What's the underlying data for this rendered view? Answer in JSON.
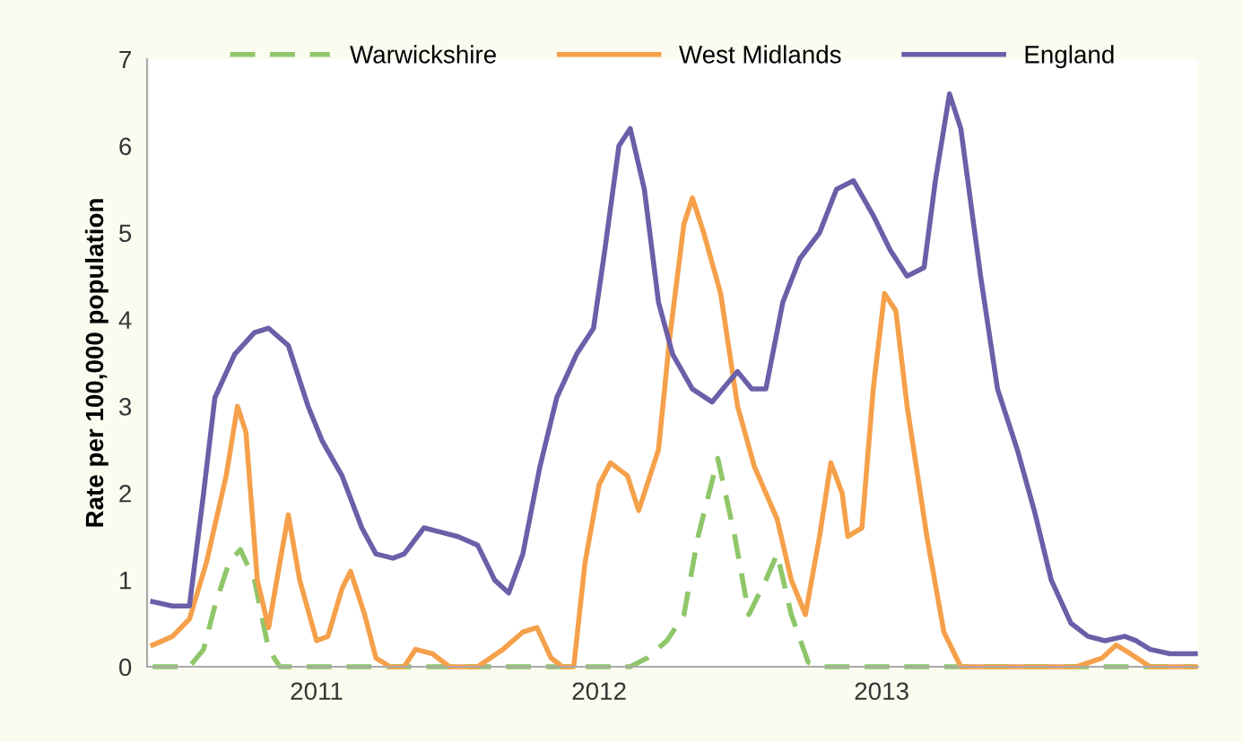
{
  "chart_data": {
    "type": "line",
    "ylabel": "Rate per 100,000 population",
    "xlim": [
      2010.4,
      2014.12
    ],
    "ylim": [
      0,
      7
    ],
    "yticks": [
      0,
      1,
      2,
      3,
      4,
      5,
      6,
      7
    ],
    "xticks": [
      2011,
      2012,
      2013
    ],
    "grid": false,
    "legend": "top",
    "marker": "none",
    "series": [
      {
        "name": "Warwickshire",
        "color": "#8fc66a",
        "line_style": "dashed",
        "x": [
          2010.42,
          2010.55,
          2010.6,
          2010.64,
          2010.69,
          2010.73,
          2010.78,
          2010.83,
          2010.87,
          2012.11,
          2012.17,
          2012.24,
          2012.3,
          2012.35,
          2012.42,
          2012.48,
          2012.53,
          2012.59,
          2012.63,
          2012.68,
          2012.74,
          2012.79,
          2014.11
        ],
        "values": [
          0,
          0,
          0.2,
          0.7,
          1.2,
          1.35,
          1.0,
          0.2,
          0,
          0,
          0.1,
          0.3,
          0.6,
          1.5,
          2.4,
          1.5,
          0.6,
          1.0,
          1.3,
          0.6,
          0.05,
          0,
          0
        ]
      },
      {
        "name": "West Midlands",
        "color": "#f5a04a",
        "line_style": "solid",
        "x": [
          2010.42,
          2010.49,
          2010.55,
          2010.61,
          2010.68,
          2010.72,
          2010.75,
          2010.79,
          2010.83,
          2010.87,
          2010.9,
          2010.94,
          2011.0,
          2011.04,
          2011.09,
          2011.12,
          2011.17,
          2011.21,
          2011.26,
          2011.31,
          2011.35,
          2011.41,
          2011.47,
          2011.57,
          2011.66,
          2011.73,
          2011.78,
          2011.83,
          2011.87,
          2011.91,
          2011.95,
          2012.0,
          2012.04,
          2012.1,
          2012.14,
          2012.21,
          2012.25,
          2012.3,
          2012.33,
          2012.37,
          2012.43,
          2012.49,
          2012.55,
          2012.63,
          2012.68,
          2012.73,
          2012.78,
          2012.82,
          2012.86,
          2012.88,
          2012.93,
          2012.97,
          2013.01,
          2013.05,
          2013.09,
          2013.16,
          2013.22,
          2013.28,
          2013.45,
          2013.69,
          2013.78,
          2013.83,
          2013.88,
          2013.95,
          2014.11
        ],
        "values": [
          0.25,
          0.35,
          0.55,
          1.2,
          2.2,
          3.0,
          2.7,
          1.0,
          0.45,
          1.2,
          1.75,
          1.0,
          0.3,
          0.35,
          0.9,
          1.1,
          0.6,
          0.1,
          0,
          0,
          0.2,
          0.15,
          0,
          0,
          0.2,
          0.4,
          0.45,
          0.1,
          0,
          0,
          1.2,
          2.1,
          2.35,
          2.2,
          1.8,
          2.5,
          3.8,
          5.1,
          5.4,
          5.0,
          4.3,
          3.0,
          2.3,
          1.7,
          1.0,
          0.6,
          1.5,
          2.35,
          2.0,
          1.5,
          1.6,
          3.2,
          4.3,
          4.1,
          3.0,
          1.5,
          0.4,
          0,
          0,
          0,
          0.1,
          0.25,
          0.15,
          0,
          0
        ]
      },
      {
        "name": "England",
        "color": "#6a5fa8",
        "line_style": "solid",
        "x": [
          2010.42,
          2010.49,
          2010.55,
          2010.6,
          2010.64,
          2010.71,
          2010.78,
          2010.83,
          2010.9,
          2010.97,
          2011.02,
          2011.09,
          2011.16,
          2011.21,
          2011.27,
          2011.31,
          2011.38,
          2011.44,
          2011.5,
          2011.57,
          2011.63,
          2011.68,
          2011.73,
          2011.79,
          2011.85,
          2011.92,
          2011.98,
          2012.02,
          2012.07,
          2012.11,
          2012.16,
          2012.21,
          2012.26,
          2012.33,
          2012.4,
          2012.45,
          2012.49,
          2012.54,
          2012.59,
          2012.65,
          2012.71,
          2012.78,
          2012.84,
          2012.9,
          2012.97,
          2013.03,
          2013.09,
          2013.15,
          2013.19,
          2013.24,
          2013.28,
          2013.35,
          2013.41,
          2013.48,
          2013.54,
          2013.6,
          2013.67,
          2013.73,
          2013.79,
          2013.86,
          2013.9,
          2013.95,
          2014.02,
          2014.11
        ],
        "values": [
          0.75,
          0.7,
          0.7,
          2.0,
          3.1,
          3.6,
          3.85,
          3.9,
          3.7,
          3.0,
          2.6,
          2.2,
          1.6,
          1.3,
          1.25,
          1.3,
          1.6,
          1.55,
          1.5,
          1.4,
          1.0,
          0.85,
          1.3,
          2.3,
          3.1,
          3.6,
          3.9,
          4.8,
          6.0,
          6.2,
          5.5,
          4.2,
          3.6,
          3.2,
          3.05,
          3.25,
          3.4,
          3.2,
          3.2,
          4.2,
          4.7,
          5.0,
          5.5,
          5.6,
          5.2,
          4.8,
          4.5,
          4.6,
          5.6,
          6.6,
          6.2,
          4.5,
          3.2,
          2.5,
          1.8,
          1.0,
          0.5,
          0.35,
          0.3,
          0.35,
          0.3,
          0.2,
          0.15,
          0.15
        ]
      }
    ]
  }
}
